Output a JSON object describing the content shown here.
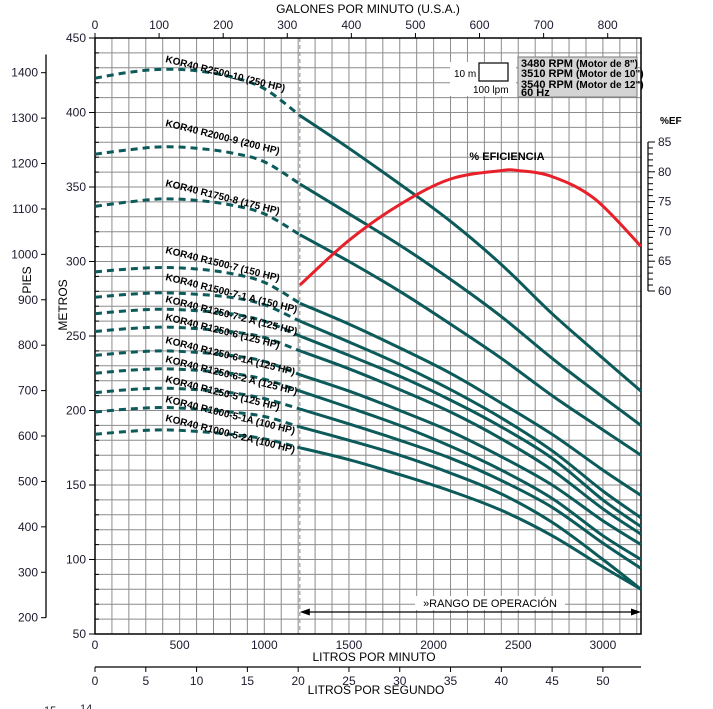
{
  "chart_data": {
    "type": "line",
    "title": "",
    "top_axis": {
      "label": "GALONES POR MINUTO (U.S.A.)",
      "ticks": [
        0,
        100,
        200,
        300,
        400,
        500,
        600,
        700,
        800
      ]
    },
    "bottom_axis_lpm": {
      "label": "LITROS POR MINUTO",
      "ticks": [
        0,
        500,
        1000,
        1500,
        2000,
        2500,
        3000
      ],
      "range": [
        0,
        3225
      ]
    },
    "bottom_axis_lps": {
      "label": "LITROS POR SEGUNDO",
      "ticks": [
        0,
        5,
        10,
        15,
        20,
        25,
        30,
        35,
        40,
        45,
        50
      ]
    },
    "left_axis_m": {
      "label": "METROS",
      "ticks": [
        50,
        100,
        150,
        200,
        250,
        300,
        350,
        400,
        450
      ],
      "range": [
        50,
        450
      ]
    },
    "left_axis_ft": {
      "label": "PIES",
      "ticks": [
        200,
        300,
        400,
        500,
        600,
        700,
        800,
        900,
        1000,
        1100,
        1200,
        1300,
        1400
      ]
    },
    "right_axis_eff": {
      "label": "%EF",
      "ticks": [
        60,
        65,
        70,
        75,
        80,
        85
      ],
      "range": [
        60,
        85
      ]
    },
    "grid": true,
    "operating_range": {
      "label": "»RANGO DE OPERACIÓN",
      "start_lpm": 1210,
      "end_lpm": 3225
    },
    "scale_box": {
      "height_label": "10 m",
      "width_label": "100 lpm"
    },
    "legend": {
      "lines": [
        {
          "bold": "3480 RPM",
          "normal": "(Motor de 8\")"
        },
        {
          "bold": "3510 RPM",
          "normal": "(Motor de 10\")"
        },
        {
          "bold": "3540 RPM",
          "normal": "(Motor de 12\")"
        },
        {
          "bold": "60 Hz",
          "normal": ""
        }
      ]
    },
    "efficiency": {
      "label": "% EFICIENCIA",
      "x_lpm": [
        1210,
        1500,
        1800,
        2100,
        2400,
        2500,
        2700,
        2950,
        3225
      ],
      "values": [
        61,
        68.5,
        74.5,
        78.8,
        80.2,
        80.2,
        79.2,
        75.5,
        67.5
      ]
    },
    "x_lpm": [
      0,
      200,
      400,
      600,
      800,
      1000,
      1210,
      1500,
      1800,
      2100,
      2400,
      2700,
      3000,
      3225
    ],
    "series": [
      {
        "name": "KOR40 R2500-10 (250 HP)",
        "values": [
          423,
          427,
          429,
          428,
          424,
          416,
          398,
          376,
          352,
          327,
          298,
          265,
          235,
          213
        ]
      },
      {
        "name": "KOR40 R2000-9 (200 HP)",
        "values": [
          372,
          375,
          377,
          376,
          373,
          367,
          352,
          332,
          311,
          288,
          263,
          235,
          209,
          190
        ]
      },
      {
        "name": "KOR40 R1750-8 (175 HP)",
        "values": [
          337,
          340,
          342,
          341,
          338,
          332,
          318,
          300,
          280,
          258,
          235,
          210,
          187,
          170
        ]
      },
      {
        "name": "KOR40 R1500-7  (150 HP)",
        "values": [
          293,
          295,
          296,
          295,
          292,
          286,
          272,
          258,
          242,
          225,
          205,
          184,
          160,
          143
        ]
      },
      {
        "name": "KOR40 R1500-7-1 A (150 HP)",
        "values": [
          276,
          278,
          279,
          278,
          276,
          271,
          260,
          246,
          231,
          214,
          195,
          173,
          146,
          128
        ]
      },
      {
        "name": "KOR40 R1250-7-2 A (125 HP)",
        "values": [
          265,
          267,
          268,
          267,
          265,
          260,
          250,
          237,
          223,
          207,
          189,
          168,
          140,
          122
        ]
      },
      {
        "name": "KOR40 R1250-6 (125 HP)",
        "values": [
          253,
          255,
          256,
          255,
          253,
          249,
          240,
          228,
          214,
          199,
          181,
          160,
          134,
          117
        ]
      },
      {
        "name": "KOR40 R1250-6-1A (125 HP)",
        "values": [
          237,
          239,
          240,
          239,
          237,
          233,
          224,
          213,
          200,
          186,
          169,
          150,
          126,
          110
        ]
      },
      {
        "name": "KOR40 R1250-6-2 A  (125 HP)",
        "values": [
          225,
          227,
          228,
          227,
          225,
          221,
          213,
          202,
          190,
          176,
          160,
          141,
          116,
          100
        ]
      },
      {
        "name": "KOR40 R1250-5 (125 HP)",
        "values": [
          212,
          214,
          215,
          214,
          212,
          208,
          201,
          191,
          180,
          168,
          153,
          135,
          111,
          94
        ]
      },
      {
        "name": "KOR40 R1000-5-1A (100 HP)",
        "values": [
          199,
          201,
          202,
          201,
          199,
          196,
          189,
          180,
          170,
          158,
          144,
          125,
          100,
          80
        ]
      },
      {
        "name": "KOR40 R1000-5-2A (100 HP)",
        "values": [
          184,
          186,
          187,
          186,
          184,
          181,
          175,
          167,
          157,
          146,
          133,
          116,
          95,
          80
        ]
      }
    ],
    "labels_under_chart": [
      "15",
      "14"
    ]
  }
}
